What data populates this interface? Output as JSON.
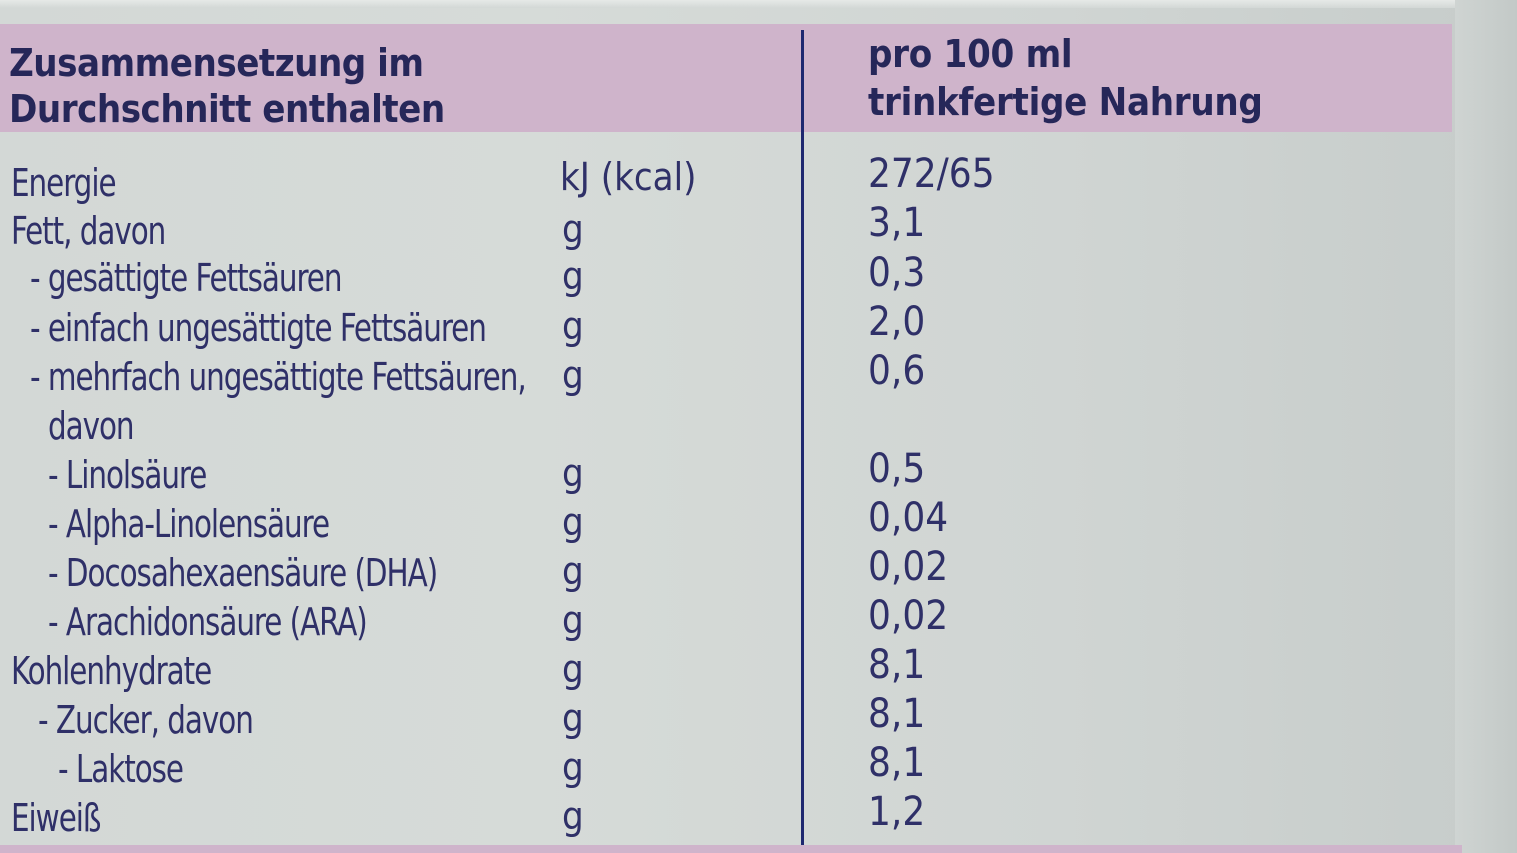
{
  "table": {
    "header": {
      "left": [
        "Zusammensetzung im",
        "Durchschnitt enthalten"
      ],
      "right": [
        "pro 100 ml",
        "trinkfertige Nahrung"
      ]
    },
    "rows": [
      {
        "label": "Energie",
        "unit": "kJ (kcal)",
        "value": "272/65"
      },
      {
        "label": "Fett, davon",
        "unit": "g",
        "value": "3,1"
      },
      {
        "label": "- gesättigte Fettsäuren",
        "unit": "g",
        "value": "0,3"
      },
      {
        "label": "- einfach ungesättigte Fettsäuren",
        "unit": "g",
        "value": "2,0"
      },
      {
        "label": "- mehrfach ungesättigte Fettsäuren,",
        "unit": "g",
        "value": "0,6"
      },
      {
        "label": "davon",
        "unit": "",
        "value": ""
      },
      {
        "label": "- Linolsäure",
        "unit": "g",
        "value": "0,5"
      },
      {
        "label": "- Alpha-Linolensäure",
        "unit": "g",
        "value": "0,04"
      },
      {
        "label": "- Docosahexaensäure (DHA)",
        "unit": "g",
        "value": "0,02"
      },
      {
        "label": "- Arachidonsäure (ARA)",
        "unit": "g",
        "value": "0,02"
      },
      {
        "label": "Kohlenhydrate",
        "unit": "g",
        "value": "8,1"
      },
      {
        "label": "- Zucker, davon",
        "unit": "g",
        "value": "8,1"
      },
      {
        "label": "- Laktose",
        "unit": "g",
        "value": "8,1"
      },
      {
        "label": "Eiweiß",
        "unit": "g",
        "value": "1,2"
      }
    ]
  },
  "colors": {
    "header_band": "#cfb4cb",
    "text": "#2f3068",
    "divider": "#1e2870"
  }
}
